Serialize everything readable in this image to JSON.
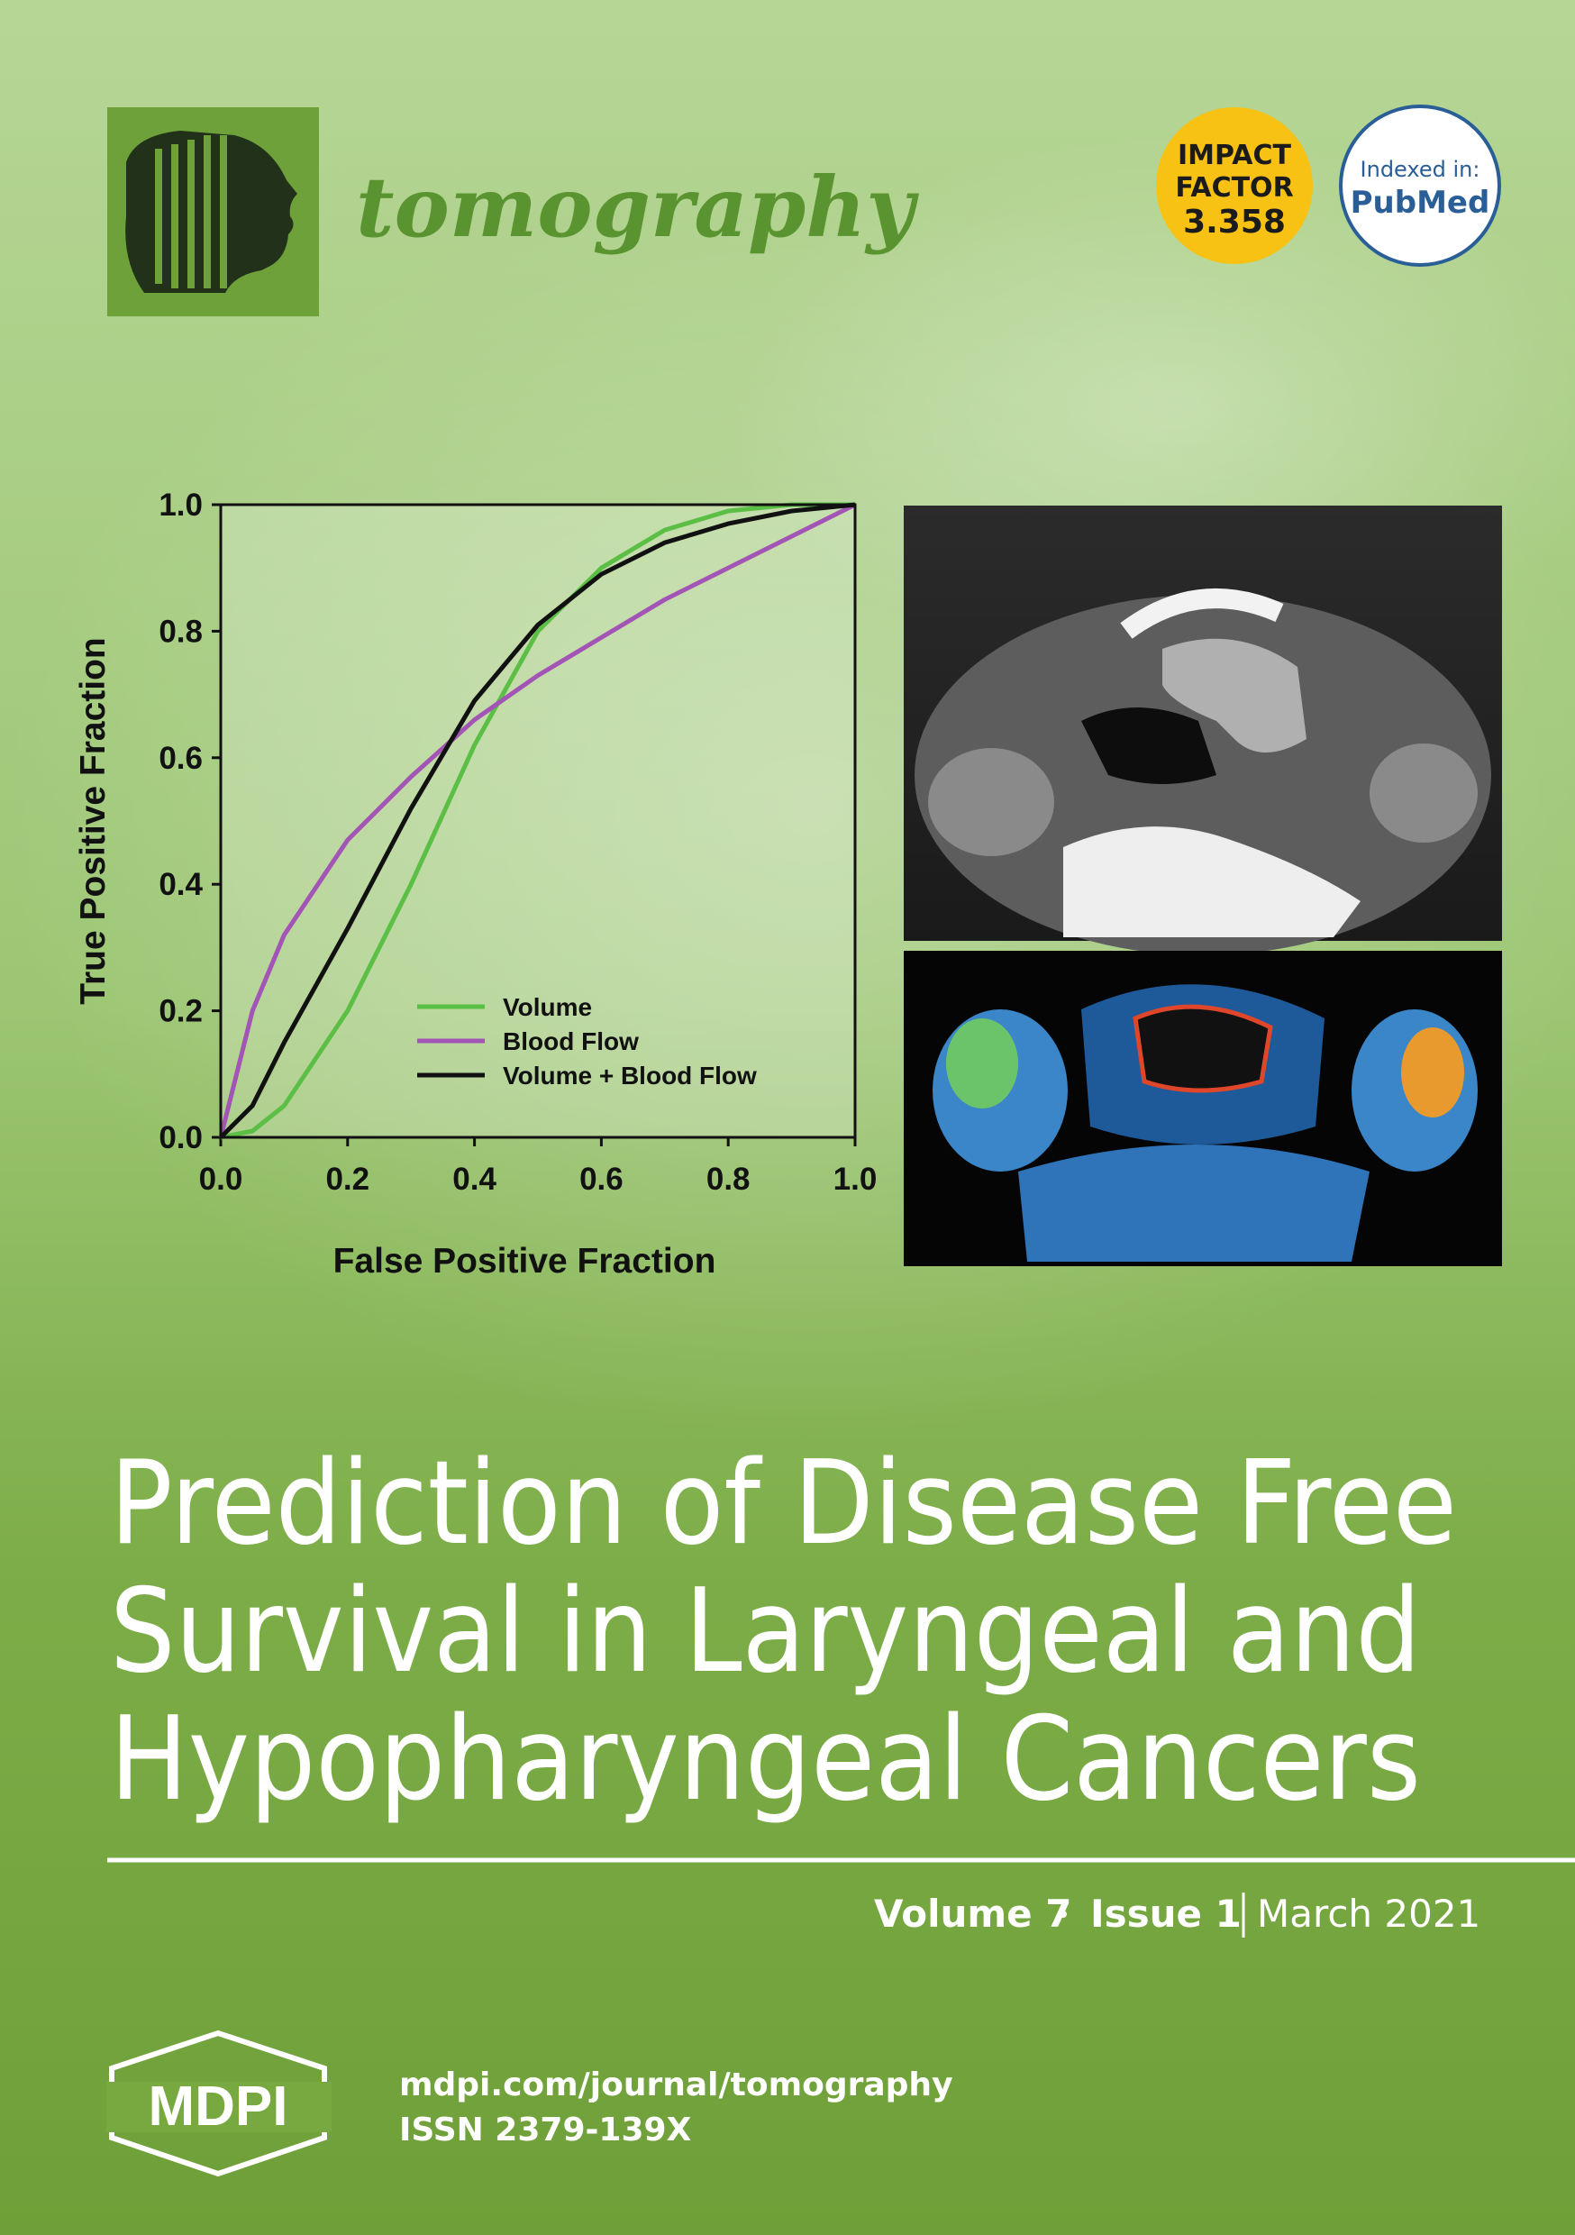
{
  "header": {
    "journal": "tomography",
    "impact_factor": {
      "line1": "IMPACT",
      "line2": "FACTOR",
      "value": "3.358"
    },
    "indexed": {
      "label": "Indexed in:",
      "name": "PubMed"
    }
  },
  "chart_data": {
    "type": "line",
    "xlabel": "False Positive Fraction",
    "ylabel": "True Positive Fraction",
    "x": [
      0,
      0.05,
      0.1,
      0.2,
      0.3,
      0.4,
      0.5,
      0.6,
      0.7,
      0.8,
      0.9,
      1
    ],
    "series": [
      {
        "name": "Volume",
        "color": "#5cbf45",
        "values": [
          0,
          0.01,
          0.05,
          0.2,
          0.4,
          0.62,
          0.8,
          0.9,
          0.96,
          0.99,
          1,
          1
        ]
      },
      {
        "name": "Blood Flow",
        "color": "#a355b5",
        "values": [
          0,
          0.2,
          0.32,
          0.47,
          0.57,
          0.66,
          0.73,
          0.79,
          0.85,
          0.9,
          0.95,
          1
        ]
      },
      {
        "name": "Volume + Blood Flow",
        "color": "#111111",
        "values": [
          0,
          0.05,
          0.15,
          0.33,
          0.52,
          0.69,
          0.81,
          0.89,
          0.94,
          0.97,
          0.99,
          1
        ]
      }
    ],
    "xlim": [
      0,
      1
    ],
    "ylim": [
      0,
      1
    ],
    "xticks": [
      {
        "value": 0,
        "label": "0.0"
      },
      0.2,
      0.4,
      0.6,
      0.8,
      {
        "value": 1,
        "label": "1.0"
      }
    ],
    "yticks": [
      {
        "value": 0,
        "label": "0.0"
      },
      0.2,
      0.4,
      0.6,
      0.8,
      {
        "value": 1,
        "label": "1.0"
      }
    ],
    "legend": "lower right"
  },
  "title_lines": [
    "Prediction of Disease Free",
    "Survival in Laryngeal and",
    "Hypopharyngeal Cancers"
  ],
  "issue": {
    "volume": "Volume 7",
    "issue": "Issue 1",
    "date": "March 2021"
  },
  "footer": {
    "publisher": "MDPI",
    "url": "mdpi.com/journal/tomography",
    "issn": "ISSN 2379-139X"
  }
}
